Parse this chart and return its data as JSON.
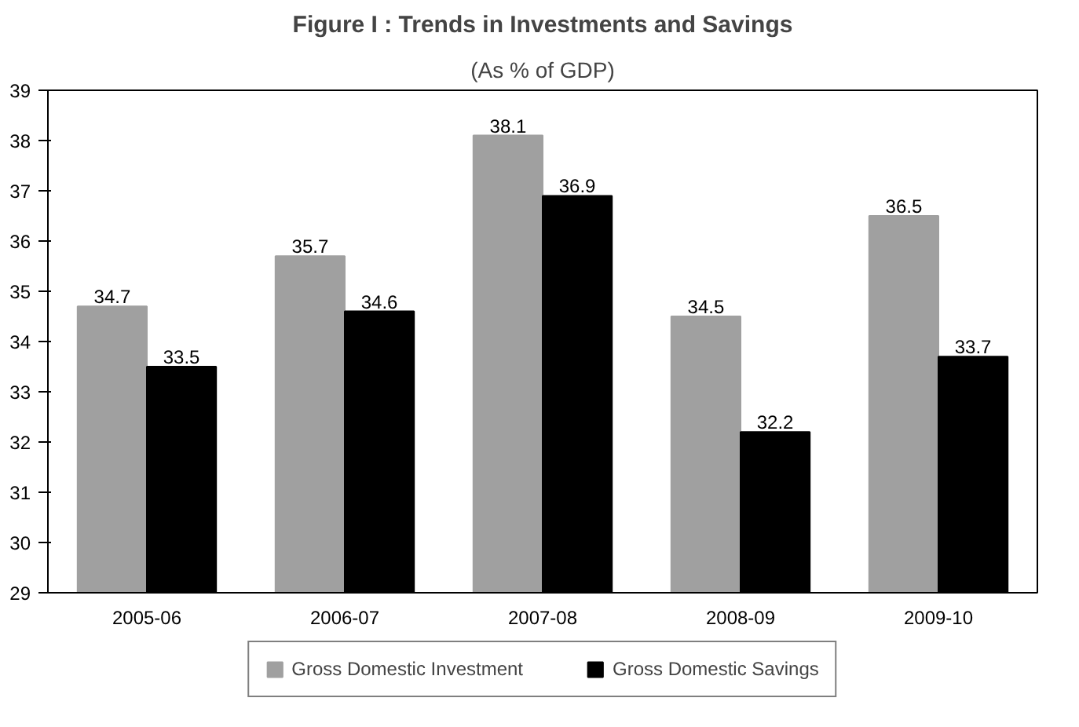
{
  "chart_data": {
    "type": "bar",
    "title": "Figure I : Trends in Investments and Savings",
    "subtitle": "(As % of GDP)",
    "categories": [
      "2005-06",
      "2006-07",
      "2007-08",
      "2008-09",
      "2009-10"
    ],
    "series": [
      {
        "name": "Gross Domestic Investment",
        "color": "#a0a0a0",
        "values": [
          34.7,
          35.7,
          38.1,
          34.5,
          36.5
        ]
      },
      {
        "name": "Gross Domestic Savings",
        "color": "#000000",
        "values": [
          33.5,
          34.6,
          36.9,
          32.2,
          33.7
        ]
      }
    ],
    "ylim": [
      29,
      39
    ],
    "yticks": [
      29,
      30,
      31,
      32,
      33,
      34,
      35,
      36,
      37,
      38,
      39
    ],
    "grid": false,
    "legend": "bottom",
    "data_labels": true
  }
}
